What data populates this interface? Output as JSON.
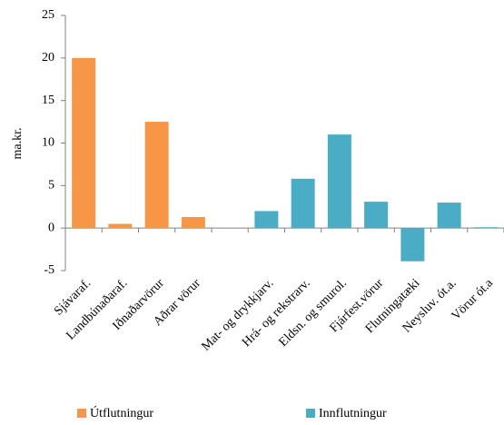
{
  "chart_data": {
    "type": "bar",
    "y_label": "ma.kr.",
    "categories": [
      "Sjávaraf.",
      "Landbúnaðaraf.",
      "Iðnaðarvörur",
      "Aðrar vörur",
      null,
      "Mat- og drykkjarv.",
      "Hrá- og rekstrarv.",
      "Eldsn. og smurol.",
      "Fjárfest.vörur",
      "Flutningatæki",
      "Neysluv. ót.a.",
      "Vörur ót.a"
    ],
    "series": [
      {
        "name": "Útflutningur",
        "color": "#f79646",
        "values": [
          20,
          0.5,
          12.5,
          1.3,
          null,
          null,
          null,
          null,
          null,
          null,
          null,
          null
        ]
      },
      {
        "name": "Innflutningur",
        "color": "#4bacc6",
        "values": [
          null,
          null,
          null,
          null,
          null,
          2,
          5.8,
          11,
          3.1,
          -3.9,
          3,
          0.1
        ]
      }
    ],
    "ylim": [
      -5,
      25
    ],
    "yticks": [
      -5,
      0,
      5,
      10,
      15,
      20,
      25
    ],
    "grid": false
  }
}
